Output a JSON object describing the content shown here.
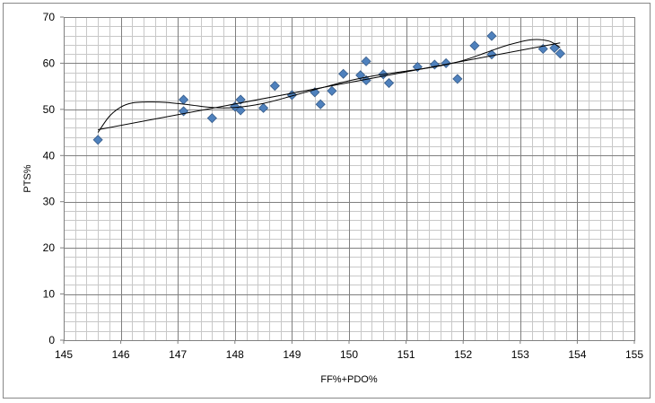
{
  "chart_data": {
    "type": "scatter",
    "title": "",
    "xlabel": "FF%+PDO%",
    "ylabel": "PTS%",
    "xlim": [
      145,
      155
    ],
    "ylim": [
      0,
      70
    ],
    "x_ticks": [
      "145",
      "146",
      "147",
      "148",
      "149",
      "150",
      "151",
      "152",
      "153",
      "154",
      "155"
    ],
    "y_ticks": [
      "0",
      "10",
      "20",
      "30",
      "40",
      "50",
      "60",
      "70"
    ],
    "x_major_step": 1,
    "y_major_step": 10,
    "x_minor_step": 0.2,
    "y_minor_step": 2,
    "grid": true,
    "legend": "none",
    "marker_color": "#4F81BD",
    "marker_edge_color": "#385D8A",
    "trendline_color": "#000000",
    "points": [
      {
        "x": 145.6,
        "y": 43.4
      },
      {
        "x": 147.1,
        "y": 52.1
      },
      {
        "x": 147.1,
        "y": 49.6
      },
      {
        "x": 147.6,
        "y": 48.1
      },
      {
        "x": 148.0,
        "y": 50.6
      },
      {
        "x": 148.1,
        "y": 52.1
      },
      {
        "x": 148.1,
        "y": 49.8
      },
      {
        "x": 148.5,
        "y": 50.3
      },
      {
        "x": 148.7,
        "y": 55.1
      },
      {
        "x": 149.0,
        "y": 53.1
      },
      {
        "x": 149.4,
        "y": 53.7
      },
      {
        "x": 149.5,
        "y": 51.1
      },
      {
        "x": 149.7,
        "y": 54.0
      },
      {
        "x": 149.9,
        "y": 57.7
      },
      {
        "x": 150.2,
        "y": 57.4
      },
      {
        "x": 150.3,
        "y": 60.4
      },
      {
        "x": 150.3,
        "y": 56.3
      },
      {
        "x": 150.6,
        "y": 57.6
      },
      {
        "x": 150.7,
        "y": 55.7
      },
      {
        "x": 151.2,
        "y": 59.2
      },
      {
        "x": 151.5,
        "y": 59.7
      },
      {
        "x": 151.7,
        "y": 60.0
      },
      {
        "x": 151.9,
        "y": 56.6
      },
      {
        "x": 152.2,
        "y": 63.8
      },
      {
        "x": 152.5,
        "y": 65.9
      },
      {
        "x": 152.5,
        "y": 61.9
      },
      {
        "x": 153.4,
        "y": 63.1
      },
      {
        "x": 153.6,
        "y": 63.3
      },
      {
        "x": 153.7,
        "y": 62.1
      }
    ],
    "trend_linear": [
      {
        "x": 145.6,
        "y": 45.6
      },
      {
        "x": 153.7,
        "y": 64.4
      }
    ],
    "trend_curve": [
      {
        "x": 145.6,
        "y": 45.0
      },
      {
        "x": 145.8,
        "y": 48.5
      },
      {
        "x": 146.0,
        "y": 50.5
      },
      {
        "x": 146.2,
        "y": 51.4
      },
      {
        "x": 146.5,
        "y": 51.6
      },
      {
        "x": 146.8,
        "y": 51.5
      },
      {
        "x": 147.2,
        "y": 51.0
      },
      {
        "x": 147.6,
        "y": 50.4
      },
      {
        "x": 148.0,
        "y": 50.4
      },
      {
        "x": 148.5,
        "y": 51.3
      },
      {
        "x": 149.0,
        "y": 52.9
      },
      {
        "x": 149.5,
        "y": 54.6
      },
      {
        "x": 150.0,
        "y": 56.2
      },
      {
        "x": 150.5,
        "y": 57.4
      },
      {
        "x": 151.0,
        "y": 58.3
      },
      {
        "x": 151.5,
        "y": 59.2
      },
      {
        "x": 152.0,
        "y": 60.6
      },
      {
        "x": 152.4,
        "y": 62.3
      },
      {
        "x": 152.8,
        "y": 64.0
      },
      {
        "x": 153.2,
        "y": 65.1
      },
      {
        "x": 153.5,
        "y": 64.8
      },
      {
        "x": 153.7,
        "y": 63.4
      }
    ]
  }
}
